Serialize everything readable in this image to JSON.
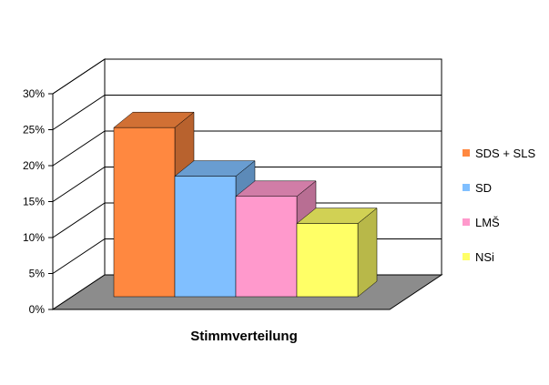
{
  "chart_data": {
    "type": "bar",
    "title": "",
    "xlabel": "Stimmverteilung",
    "ylabel": "",
    "ylim": [
      0,
      30
    ],
    "ytick_values": [
      0,
      5,
      10,
      15,
      20,
      25,
      30
    ],
    "ytick_labels": [
      "0%",
      "5%",
      "10%",
      "15%",
      "20%",
      "25%",
      "30%"
    ],
    "grid": true,
    "legend_placement": "right",
    "series": [
      {
        "name": "SDS + SLS",
        "value": 26.8,
        "color": "#ff8840"
      },
      {
        "name": "SD",
        "value": 19.1,
        "color": "#80bfff"
      },
      {
        "name": "LMŠ",
        "value": 15.9,
        "color": "#ff99cc"
      },
      {
        "name": "NSi",
        "value": 11.6,
        "color": "#ffff66"
      }
    ]
  }
}
